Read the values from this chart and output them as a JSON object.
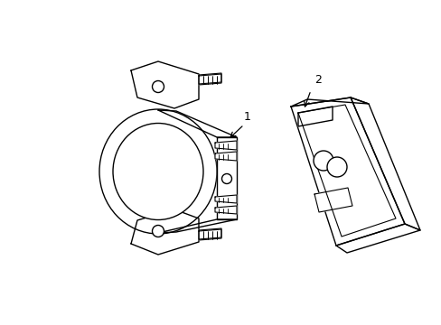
{
  "background_color": "#ffffff",
  "line_color": "#000000",
  "line_width": 1.0,
  "label1": "1",
  "label2": "2",
  "fig_width": 4.89,
  "fig_height": 3.6,
  "dpi": 100
}
